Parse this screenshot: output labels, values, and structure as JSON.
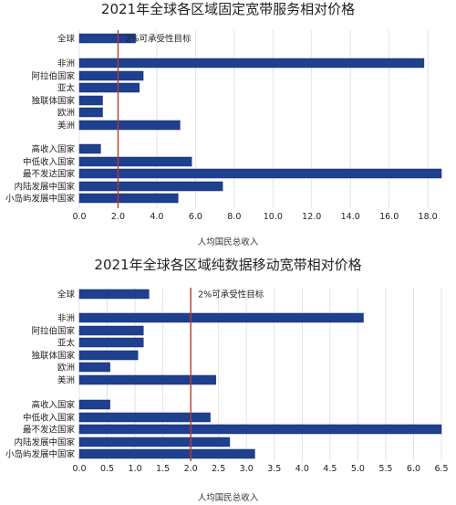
{
  "chart_data": [
    {
      "type": "bar",
      "orientation": "horizontal",
      "title": "2021年全球各区域固定宽带服务相对价格",
      "xlabel": "人均国民总收入",
      "ylabel": "",
      "categories": [
        "全球",
        "非洲",
        "阿拉伯国家",
        "亚太",
        "独联体国家",
        "欧洲",
        "美洲",
        "高收入国家",
        "中低收入国家",
        "最不发达国家",
        "内陆发展中国家",
        "小岛屿发展中国家"
      ],
      "values": [
        2.9,
        17.8,
        3.3,
        3.1,
        1.2,
        1.2,
        5.2,
        1.1,
        5.8,
        18.7,
        7.4,
        5.1
      ],
      "xlim": [
        0,
        18.7
      ],
      "ticks": [
        "0.0",
        "2.0",
        "4.0",
        "6.0",
        "8.0",
        "10.0",
        "12.0",
        "14.0",
        "16.0",
        "18.0"
      ],
      "tick_values": [
        0,
        2,
        4,
        6,
        8,
        10,
        12,
        14,
        16,
        18
      ],
      "reference_line": {
        "value": 2.0,
        "label": "2%可承受性目标",
        "color": "#c0392b"
      },
      "bar_color": "#1f3f8f",
      "grid": "vertical"
    },
    {
      "type": "bar",
      "orientation": "horizontal",
      "title": "2021年全球各区域纯数据移动宽带相对价格",
      "xlabel": "人均国民总收入",
      "ylabel": "",
      "categories": [
        "全球",
        "非洲",
        "阿拉伯国家",
        "亚太",
        "独联体国家",
        "欧洲",
        "美洲",
        "高收入国家",
        "中低收入国家",
        "最不发达国家",
        "内陆发展中国家",
        "小岛屿发展中国家"
      ],
      "values": [
        1.25,
        5.1,
        1.15,
        1.15,
        1.05,
        0.55,
        2.45,
        0.55,
        2.35,
        6.5,
        2.7,
        3.15
      ],
      "xlim": [
        0,
        6.5
      ],
      "ticks": [
        "0.0",
        "0.5",
        "1.0",
        "1.5",
        "2.0",
        "2.5",
        "3.0",
        "3.5",
        "4.0",
        "4.5",
        "5.0",
        "5.5",
        "6.0",
        "6.5"
      ],
      "tick_values": [
        0,
        0.5,
        1,
        1.5,
        2,
        2.5,
        3,
        3.5,
        4,
        4.5,
        5,
        5.5,
        6,
        6.5
      ],
      "reference_line": {
        "value": 2.0,
        "label": "2%可承受性目标",
        "color": "#c0392b"
      },
      "bar_color": "#1f3f8f",
      "grid": "vertical"
    }
  ]
}
